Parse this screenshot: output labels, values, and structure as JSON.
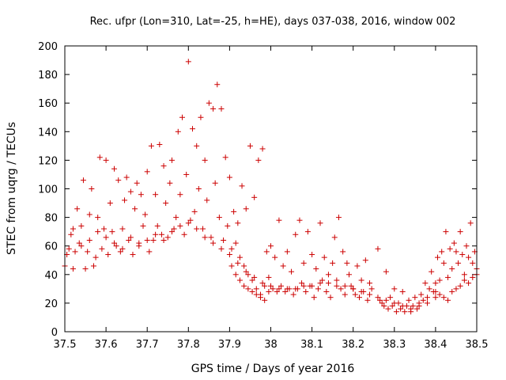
{
  "chart_data": {
    "type": "scatter",
    "title": "Rec. ufpr (Lon=310, Lat=-25, h=HE), days 037-038, 2016, window 002",
    "xlabel": "GPS time / Days of year 2016",
    "ylabel": "STEC from uqrg / TECUs",
    "xlim": [
      37.5,
      38.5
    ],
    "ylim": [
      0,
      200
    ],
    "x_ticks": [
      37.5,
      37.6,
      37.7,
      37.8,
      37.9,
      38.0,
      38.1,
      38.2,
      38.3,
      38.4,
      38.5
    ],
    "x_tick_labels": [
      "37.5",
      "37.6",
      "37.7",
      "37.8",
      "37.9",
      "38",
      "38.1",
      "38.2",
      "38.3",
      "38.4",
      "38.5"
    ],
    "y_ticks": [
      0,
      20,
      40,
      60,
      80,
      100,
      120,
      140,
      160,
      180,
      200
    ],
    "y_tick_labels": [
      "0",
      "20",
      "40",
      "60",
      "80",
      "100",
      "120",
      "140",
      "160",
      "180",
      "200"
    ],
    "marker": "+",
    "color": "#cc0000",
    "grid": false,
    "legend": "none",
    "points": [
      [
        37.5,
        46
      ],
      [
        37.505,
        54
      ],
      [
        37.51,
        58
      ],
      [
        37.515,
        68
      ],
      [
        37.52,
        44
      ],
      [
        37.525,
        56
      ],
      [
        37.53,
        86
      ],
      [
        37.535,
        62
      ],
      [
        37.54,
        74
      ],
      [
        37.545,
        106
      ],
      [
        37.55,
        44
      ],
      [
        37.555,
        56
      ],
      [
        37.56,
        82
      ],
      [
        37.565,
        100
      ],
      [
        37.57,
        46
      ],
      [
        37.575,
        52
      ],
      [
        37.58,
        80
      ],
      [
        37.585,
        122
      ],
      [
        37.59,
        58
      ],
      [
        37.595,
        72
      ],
      [
        37.6,
        120
      ],
      [
        37.605,
        54
      ],
      [
        37.61,
        90
      ],
      [
        37.615,
        70
      ],
      [
        37.62,
        114
      ],
      [
        37.625,
        60
      ],
      [
        37.63,
        106
      ],
      [
        37.635,
        56
      ],
      [
        37.64,
        72
      ],
      [
        37.645,
        92
      ],
      [
        37.65,
        108
      ],
      [
        37.655,
        64
      ],
      [
        37.66,
        98
      ],
      [
        37.665,
        54
      ],
      [
        37.67,
        86
      ],
      [
        37.675,
        104
      ],
      [
        37.68,
        62
      ],
      [
        37.685,
        96
      ],
      [
        37.69,
        74
      ],
      [
        37.695,
        82
      ],
      [
        37.7,
        112
      ],
      [
        37.705,
        56
      ],
      [
        37.71,
        130
      ],
      [
        37.715,
        64
      ],
      [
        37.72,
        96
      ],
      [
        37.725,
        74
      ],
      [
        37.73,
        131
      ],
      [
        37.735,
        68
      ],
      [
        37.74,
        116
      ],
      [
        37.745,
        90
      ],
      [
        37.75,
        66
      ],
      [
        37.755,
        104
      ],
      [
        37.76,
        120
      ],
      [
        37.765,
        72
      ],
      [
        37.77,
        80
      ],
      [
        37.775,
        140
      ],
      [
        37.78,
        96
      ],
      [
        37.785,
        150
      ],
      [
        37.79,
        68
      ],
      [
        37.795,
        110
      ],
      [
        37.8,
        189
      ],
      [
        37.805,
        78
      ],
      [
        37.81,
        142
      ],
      [
        37.815,
        84
      ],
      [
        37.82,
        130
      ],
      [
        37.825,
        100
      ],
      [
        37.83,
        150
      ],
      [
        37.835,
        72
      ],
      [
        37.84,
        120
      ],
      [
        37.845,
        92
      ],
      [
        37.85,
        160
      ],
      [
        37.855,
        66
      ],
      [
        37.86,
        156
      ],
      [
        37.865,
        104
      ],
      [
        37.87,
        173
      ],
      [
        37.875,
        80
      ],
      [
        37.88,
        156
      ],
      [
        37.885,
        64
      ],
      [
        37.89,
        122
      ],
      [
        37.895,
        74
      ],
      [
        37.9,
        108
      ],
      [
        37.905,
        58
      ],
      [
        37.91,
        84
      ],
      [
        37.915,
        62
      ],
      [
        37.92,
        76
      ],
      [
        37.925,
        52
      ],
      [
        37.93,
        102
      ],
      [
        37.935,
        46
      ],
      [
        37.94,
        86
      ],
      [
        37.945,
        40
      ],
      [
        37.95,
        130
      ],
      [
        37.955,
        36
      ],
      [
        37.96,
        94
      ],
      [
        37.965,
        30
      ],
      [
        37.97,
        120
      ],
      [
        37.975,
        26
      ],
      [
        37.98,
        128
      ],
      [
        37.985,
        22
      ],
      [
        37.99,
        56
      ],
      [
        37.995,
        28
      ],
      [
        37.905,
        46
      ],
      [
        37.915,
        40
      ],
      [
        37.925,
        36
      ],
      [
        37.935,
        32
      ],
      [
        37.945,
        30
      ],
      [
        37.955,
        28
      ],
      [
        37.965,
        26
      ],
      [
        37.975,
        24
      ],
      [
        37.985,
        32
      ],
      [
        37.995,
        38
      ],
      [
        38.0,
        60
      ],
      [
        38.005,
        30
      ],
      [
        38.01,
        52
      ],
      [
        38.015,
        28
      ],
      [
        38.02,
        78
      ],
      [
        38.025,
        32
      ],
      [
        38.03,
        46
      ],
      [
        38.035,
        28
      ],
      [
        38.04,
        56
      ],
      [
        38.045,
        30
      ],
      [
        38.05,
        42
      ],
      [
        38.055,
        26
      ],
      [
        38.06,
        68
      ],
      [
        38.065,
        30
      ],
      [
        38.07,
        78
      ],
      [
        38.075,
        34
      ],
      [
        38.08,
        48
      ],
      [
        38.085,
        28
      ],
      [
        38.09,
        70
      ],
      [
        38.095,
        32
      ],
      [
        38.1,
        54
      ],
      [
        38.105,
        24
      ],
      [
        38.11,
        44
      ],
      [
        38.115,
        30
      ],
      [
        38.12,
        76
      ],
      [
        38.125,
        36
      ],
      [
        38.13,
        52
      ],
      [
        38.135,
        28
      ],
      [
        38.14,
        40
      ],
      [
        38.145,
        24
      ],
      [
        38.15,
        48
      ],
      [
        38.155,
        66
      ],
      [
        38.16,
        36
      ],
      [
        38.165,
        80
      ],
      [
        38.17,
        30
      ],
      [
        38.175,
        56
      ],
      [
        38.18,
        26
      ],
      [
        38.185,
        48
      ],
      [
        38.19,
        40
      ],
      [
        38.195,
        32
      ],
      [
        38.2,
        30
      ],
      [
        38.205,
        26
      ],
      [
        38.21,
        46
      ],
      [
        38.215,
        24
      ],
      [
        38.22,
        36
      ],
      [
        38.225,
        28
      ],
      [
        38.23,
        50
      ],
      [
        38.235,
        22
      ],
      [
        38.24,
        34
      ],
      [
        38.245,
        30
      ],
      [
        38.26,
        58
      ],
      [
        38.265,
        22
      ],
      [
        38.27,
        20
      ],
      [
        38.275,
        18
      ],
      [
        38.28,
        42
      ],
      [
        38.285,
        16
      ],
      [
        38.29,
        24
      ],
      [
        38.295,
        18
      ],
      [
        38.3,
        30
      ],
      [
        38.305,
        14
      ],
      [
        38.31,
        20
      ],
      [
        38.315,
        16
      ],
      [
        38.32,
        28
      ],
      [
        38.325,
        14
      ],
      [
        38.33,
        18
      ],
      [
        38.335,
        22
      ],
      [
        38.34,
        14
      ],
      [
        38.345,
        18
      ],
      [
        38.35,
        24
      ],
      [
        38.355,
        16
      ],
      [
        38.36,
        20
      ],
      [
        38.365,
        26
      ],
      [
        38.37,
        22
      ],
      [
        38.375,
        34
      ],
      [
        38.38,
        24
      ],
      [
        38.385,
        30
      ],
      [
        38.39,
        42
      ],
      [
        38.395,
        28
      ],
      [
        38.4,
        34
      ],
      [
        38.405,
        52
      ],
      [
        38.41,
        36
      ],
      [
        38.415,
        56
      ],
      [
        38.42,
        48
      ],
      [
        38.425,
        70
      ],
      [
        38.43,
        38
      ],
      [
        38.435,
        58
      ],
      [
        38.44,
        44
      ],
      [
        38.445,
        62
      ],
      [
        38.45,
        56
      ],
      [
        38.455,
        48
      ],
      [
        38.46,
        70
      ],
      [
        38.465,
        54
      ],
      [
        38.47,
        40
      ],
      [
        38.475,
        60
      ],
      [
        38.48,
        52
      ],
      [
        38.485,
        76
      ],
      [
        38.49,
        48
      ],
      [
        38.495,
        56
      ],
      [
        38.5,
        44
      ],
      [
        38.4,
        28
      ],
      [
        38.41,
        26
      ],
      [
        38.42,
        24
      ],
      [
        38.43,
        22
      ],
      [
        38.44,
        28
      ],
      [
        38.45,
        30
      ],
      [
        38.46,
        32
      ],
      [
        38.47,
        36
      ],
      [
        38.48,
        34
      ],
      [
        38.49,
        38
      ],
      [
        38.5,
        40
      ],
      [
        37.52,
        72
      ],
      [
        37.54,
        60
      ],
      [
        37.56,
        64
      ],
      [
        37.58,
        70
      ],
      [
        37.6,
        66
      ],
      [
        37.62,
        62
      ],
      [
        37.64,
        58
      ],
      [
        37.66,
        66
      ],
      [
        37.68,
        60
      ],
      [
        37.7,
        64
      ],
      [
        37.72,
        68
      ],
      [
        37.74,
        64
      ],
      [
        37.76,
        70
      ],
      [
        37.78,
        74
      ],
      [
        37.8,
        76
      ],
      [
        37.82,
        72
      ],
      [
        37.84,
        66
      ],
      [
        37.86,
        62
      ],
      [
        37.88,
        58
      ],
      [
        37.9,
        54
      ],
      [
        37.92,
        48
      ],
      [
        37.94,
        42
      ],
      [
        37.96,
        38
      ],
      [
        37.98,
        34
      ],
      [
        38.0,
        32
      ],
      [
        38.02,
        30
      ],
      [
        38.04,
        30
      ],
      [
        38.06,
        30
      ],
      [
        38.08,
        32
      ],
      [
        38.1,
        32
      ],
      [
        38.12,
        34
      ],
      [
        38.14,
        34
      ],
      [
        38.16,
        32
      ],
      [
        38.18,
        32
      ],
      [
        38.2,
        30
      ],
      [
        38.22,
        28
      ],
      [
        38.24,
        26
      ],
      [
        38.26,
        24
      ],
      [
        38.28,
        22
      ],
      [
        38.3,
        20
      ],
      [
        38.32,
        18
      ],
      [
        38.34,
        16
      ],
      [
        38.36,
        18
      ],
      [
        38.38,
        20
      ],
      [
        38.4,
        24
      ]
    ]
  }
}
